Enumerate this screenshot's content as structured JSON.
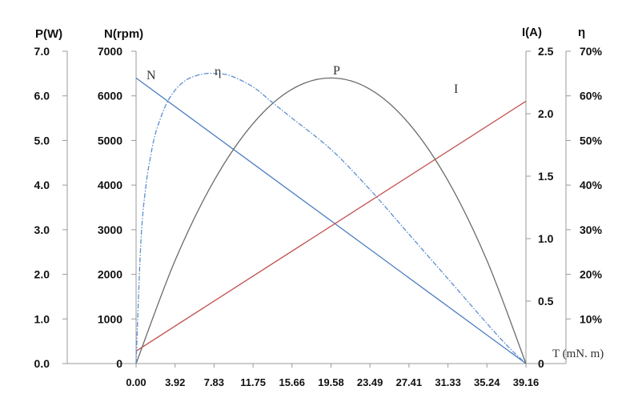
{
  "chart_data": {
    "type": "line",
    "x": [
      0,
      3.92,
      7.83,
      11.75,
      15.66,
      19.58,
      23.49,
      27.41,
      31.33,
      35.24,
      39.16
    ],
    "x_ticks": [
      "0.00",
      "3.92",
      "7.83",
      "11.75",
      "15.66",
      "19.58",
      "23.49",
      "27.41",
      "31.33",
      "35.24",
      "39.16"
    ],
    "xlabel": "T (mN. m)",
    "xlim": [
      0,
      39.16
    ],
    "axes": {
      "P": {
        "title": "P(W)",
        "ticks": [
          "0.0",
          "1.0",
          "2.0",
          "3.0",
          "4.0",
          "5.0",
          "6.0",
          "7.0"
        ],
        "ylim": [
          0,
          7
        ]
      },
      "N": {
        "title": "N(rpm)",
        "ticks": [
          "0",
          "1000",
          "2000",
          "3000",
          "4000",
          "5000",
          "6000",
          "7000"
        ],
        "ylim": [
          0,
          7000
        ]
      },
      "I": {
        "title": "I(A)",
        "ticks": [
          "0",
          "0.5",
          "1.0",
          "1.5",
          "2.0",
          "2.5"
        ],
        "ylim": [
          0,
          2.5
        ]
      },
      "eta": {
        "title": "η",
        "ticks": [
          "10%",
          "20%",
          "30%",
          "40%",
          "50%",
          "60%",
          "70%"
        ],
        "ylim": [
          0,
          70
        ]
      }
    },
    "series": [
      {
        "name": "N",
        "axis": "N",
        "color": "#4a7cc1",
        "style": "solid",
        "x": [
          0,
          39.16
        ],
        "y": [
          6400,
          0
        ]
      },
      {
        "name": "I",
        "axis": "I",
        "color": "#c0504d",
        "style": "solid",
        "x": [
          0,
          39.16
        ],
        "y": [
          0.1,
          2.1
        ]
      },
      {
        "name": "P",
        "axis": "P",
        "color": "#6b6b6b",
        "style": "solid",
        "x": [
          0,
          3.92,
          7.83,
          11.75,
          15.66,
          19.58,
          23.49,
          27.41,
          31.33,
          35.24,
          39.16
        ],
        "y": [
          0,
          2.31,
          4.1,
          5.38,
          6.15,
          6.4,
          6.15,
          5.38,
          4.1,
          2.31,
          0
        ]
      },
      {
        "name": "η",
        "axis": "eta",
        "color": "#5b8fd0",
        "style": "dashdot",
        "x": [
          0,
          0.5,
          1,
          1.5,
          2,
          3,
          4,
          5,
          6,
          7,
          8,
          9.5,
          11.75,
          13.7,
          15.66,
          19.58,
          23.49,
          27.41,
          31.33,
          35.24,
          37.5,
          39.16
        ],
        "y": [
          0,
          28,
          40,
          47,
          52,
          58,
          61.5,
          63.5,
          64.5,
          65,
          65,
          64.5,
          62,
          58.5,
          55,
          48,
          39,
          29,
          19,
          9,
          3.5,
          0
        ]
      }
    ],
    "curve_labels": [
      "N",
      "η",
      "P",
      "I"
    ]
  }
}
